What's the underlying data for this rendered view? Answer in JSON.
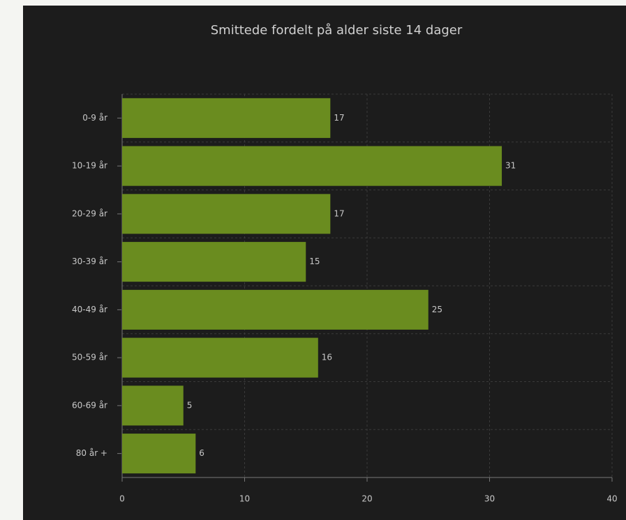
{
  "chart_data": {
    "type": "bar",
    "orientation": "horizontal",
    "title": "Smittede fordelt på alder siste 14 dager",
    "categories": [
      "0-9 år",
      "10-19 år",
      "20-29 år",
      "30-39 år",
      "40-49 år",
      "50-59 år",
      "60-69 år",
      "80 år +"
    ],
    "values": [
      17,
      31,
      17,
      15,
      25,
      16,
      5,
      6
    ],
    "color": "#6a8c1f",
    "xlim": [
      0,
      40
    ],
    "xticks": [
      0,
      10,
      20,
      30,
      40
    ],
    "grid": true
  }
}
